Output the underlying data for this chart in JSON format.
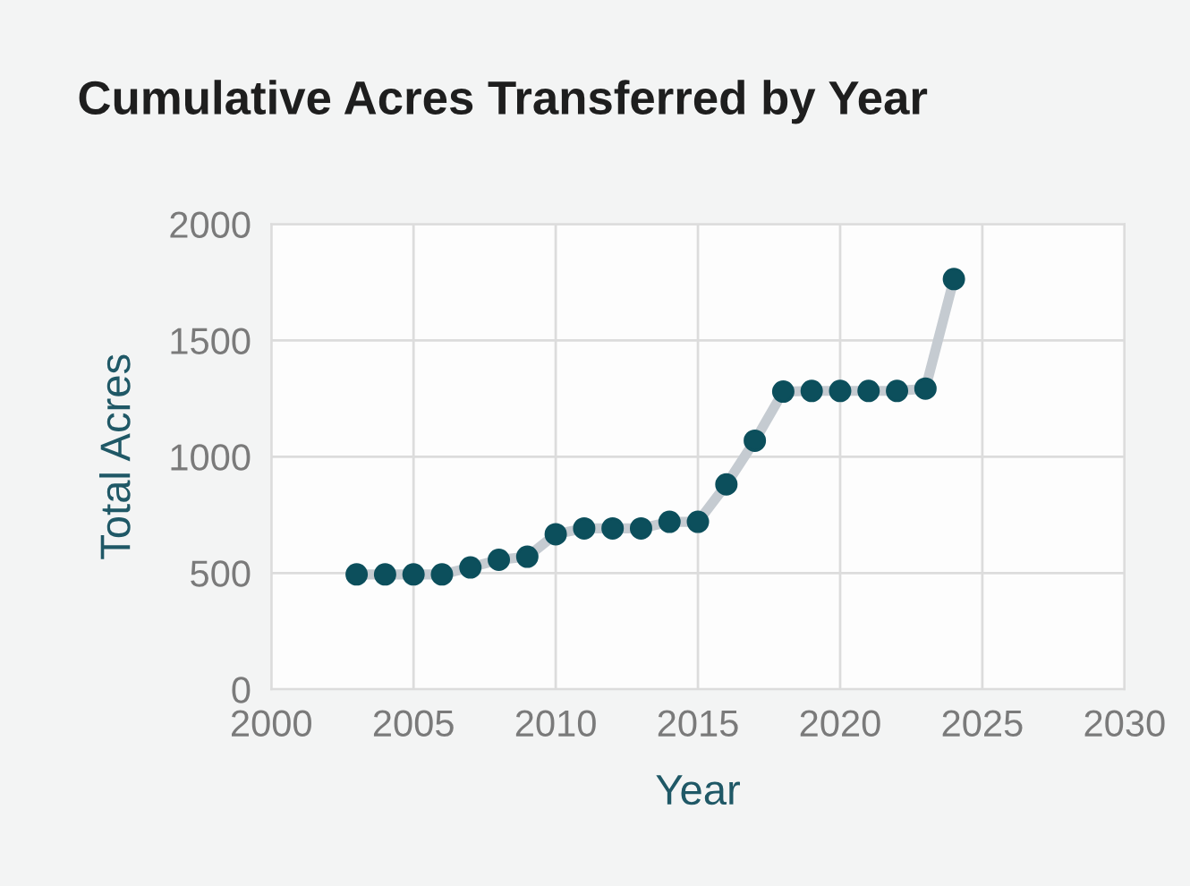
{
  "chart_data": {
    "type": "line",
    "title": "Cumulative Acres Transferred by Year",
    "xlabel": "Year",
    "ylabel": "Total Acres",
    "x": [
      2003,
      2004,
      2005,
      2006,
      2007,
      2008,
      2009,
      2010,
      2011,
      2012,
      2013,
      2014,
      2015,
      2016,
      2017,
      2018,
      2019,
      2020,
      2021,
      2022,
      2023,
      2024
    ],
    "series": [
      {
        "color": "#0c4f5c",
        "values": [
          494,
          494,
          494,
          494,
          524,
          557,
          570,
          667,
          692,
          692,
          692,
          720,
          720,
          881,
          1069,
          1280,
          1283,
          1283,
          1283,
          1283,
          1293,
          1764
        ]
      }
    ],
    "xlim": [
      2000,
      2030
    ],
    "xticks": [
      2000,
      2005,
      2010,
      2015,
      2020,
      2025,
      2030
    ],
    "ylim": [
      0,
      2000
    ],
    "yticks": [
      0,
      500,
      1000,
      1500,
      2000
    ],
    "grid": true,
    "marker": "circle",
    "line_style": "solid"
  }
}
